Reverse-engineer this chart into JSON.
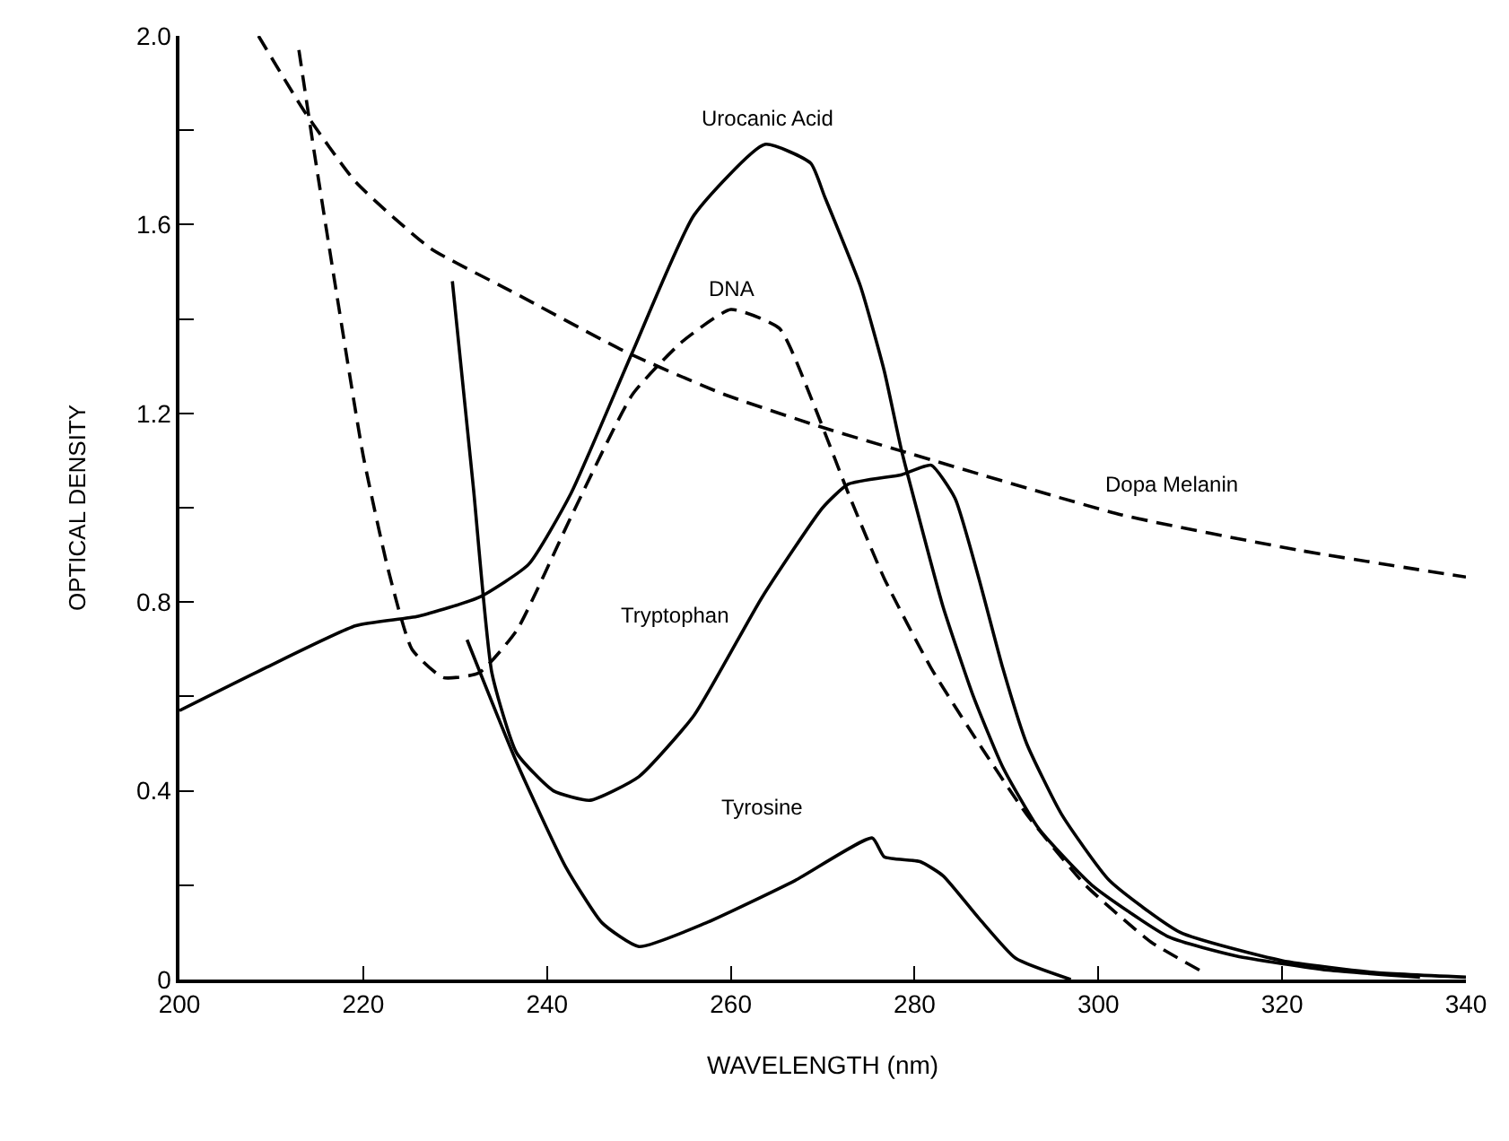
{
  "chart_data": {
    "type": "line",
    "xlabel": "WAVELENGTH (nm)",
    "ylabel": "OPTICAL DENSITY",
    "xlim": [
      200,
      340
    ],
    "xticks": [
      200,
      220,
      240,
      260,
      280,
      300,
      320,
      340
    ],
    "ylim": [
      0,
      2.0
    ],
    "yticks": [
      {
        "value": 0,
        "label": "0"
      },
      {
        "value": 0.2,
        "label": null
      },
      {
        "value": 0.4,
        "label": "0.4"
      },
      {
        "value": 0.6,
        "label": null
      },
      {
        "value": 0.8,
        "label": "0.8"
      },
      {
        "value": 1.0,
        "label": null
      },
      {
        "value": 1.2,
        "label": "1.2"
      },
      {
        "value": 1.4,
        "label": null
      },
      {
        "value": 1.6,
        "label": "1.6"
      },
      {
        "value": 1.8,
        "label": null
      },
      {
        "value": 2.0,
        "label": "2.0"
      }
    ],
    "legend": false,
    "marker": "none",
    "series": [
      {
        "name": "Urocanic Acid",
        "color": "#000000",
        "line_style": "solid",
        "x": [
          200,
          209.3,
          219.2,
          226,
          232.6,
          238,
          242.6,
          249.3,
          256,
          263.7,
          268.7,
          270.2,
          274.1,
          276.7,
          278.6,
          280.6,
          283.1,
          286.4,
          289.6,
          293.5,
          299.3,
          307.7,
          315,
          325,
          335
        ],
        "values": [
          0.57,
          0.66,
          0.75,
          0.77,
          0.81,
          0.88,
          1.03,
          1.33,
          1.62,
          1.77,
          1.73,
          1.66,
          1.47,
          1.29,
          1.12,
          0.97,
          0.79,
          0.6,
          0.45,
          0.32,
          0.2,
          0.09,
          0.05,
          0.02,
          0.005
        ]
      },
      {
        "name": "DNA",
        "color": "#000000",
        "line_style": "dashed",
        "x": [
          213,
          214.7,
          217.3,
          220,
          222.7,
          225.3,
          228.7,
          232.6,
          236.7,
          242.6,
          249.3,
          254.6,
          260,
          265.3,
          269,
          272.8,
          276.7,
          281.8,
          287,
          292.2,
          298.6,
          305.7,
          311
        ],
        "values": [
          1.97,
          1.75,
          1.43,
          1.11,
          0.87,
          0.7,
          0.64,
          0.65,
          0.74,
          0.98,
          1.24,
          1.35,
          1.42,
          1.38,
          1.22,
          1.03,
          0.85,
          0.66,
          0.5,
          0.35,
          0.2,
          0.08,
          0.02
        ]
      },
      {
        "name": "Tryptophan",
        "color": "#000000",
        "line_style": "solid",
        "x": [
          229.7,
          232,
          234,
          236.7,
          240.7,
          244.7,
          250,
          256,
          263.4,
          270,
          272.8,
          278.6,
          281.8,
          284.4,
          287,
          289.6,
          292.2,
          296,
          301.2,
          308.9,
          320,
          330,
          340
        ],
        "values": [
          1.48,
          1.04,
          0.65,
          0.48,
          0.4,
          0.38,
          0.43,
          0.56,
          0.81,
          1.0,
          1.05,
          1.07,
          1.09,
          1.02,
          0.85,
          0.66,
          0.5,
          0.35,
          0.21,
          0.1,
          0.04,
          0.015,
          0.005
        ]
      },
      {
        "name": "Tyrosine",
        "color": "#000000",
        "line_style": "solid",
        "x": [
          231.3,
          236.7,
          242,
          246,
          250,
          257.3,
          267,
          275.4,
          276.7,
          280.6,
          283.1,
          287,
          291,
          297
        ],
        "values": [
          0.72,
          0.46,
          0.24,
          0.12,
          0.07,
          0.12,
          0.21,
          0.3,
          0.26,
          0.25,
          0.22,
          0.13,
          0.045,
          0.0
        ]
      },
      {
        "name": "Dopa Melanin",
        "color": "#000000",
        "line_style": "dashed",
        "x": [
          208.6,
          213.6,
          219.2,
          227.3,
          236,
          248.6,
          259.3,
          270,
          278.6,
          302.5,
          321.8,
          340
        ],
        "values": [
          2.0,
          1.84,
          1.69,
          1.55,
          1.46,
          1.33,
          1.24,
          1.17,
          1.12,
          0.985,
          0.91,
          0.853
        ]
      }
    ]
  }
}
